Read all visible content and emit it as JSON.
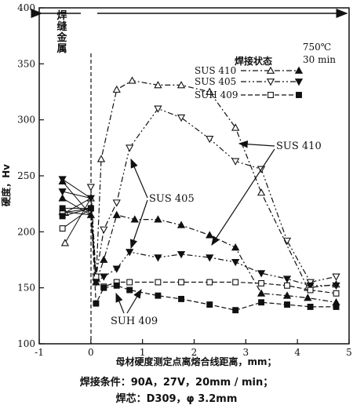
{
  "chart_data": {
    "type": "line",
    "xlabel": "母材硬度测定点离熔合线距离，mm；",
    "ylabel": "硬度，Hv",
    "xlim": [
      -1,
      5
    ],
    "ylim": [
      100,
      400
    ],
    "x_ticks": [
      "-1",
      "0",
      "1",
      "2",
      "3",
      "4",
      "5"
    ],
    "y_ticks": [
      "100",
      "150",
      "200",
      "250",
      "300",
      "350",
      "400"
    ],
    "weld_metal_label": "焊缝金属",
    "legend": {
      "header_cond": "焊接状态",
      "header_temp": "750℃",
      "header_time": "30 min",
      "rows": [
        "SUS 410",
        "SUS 405",
        "SUH 409"
      ]
    },
    "annotations": [
      "SUS 410",
      "SUS 405",
      "SUH 409"
    ],
    "series": [
      {
        "name": "SUS 410",
        "condition": "焊接状态",
        "marker": "triangle-up-open",
        "dash": "dashdot",
        "x": [
          -0.5,
          -0.5,
          0,
          0.1,
          0.2,
          0.5,
          0.8,
          1.3,
          1.75,
          2.3,
          2.8,
          3.3,
          4.2,
          4.75
        ],
        "y": [
          190,
          217,
          230,
          155,
          265,
          327,
          335,
          331,
          331,
          325,
          293,
          235,
          150,
          153
        ]
      },
      {
        "name": "SUS 410",
        "condition": "750℃ 30 min",
        "marker": "triangle-up-filled",
        "dash": "dashdot",
        "x": [
          -0.55,
          -0.55,
          -0.55,
          0,
          0.1,
          0.25,
          0.5,
          0.85,
          1.3,
          1.75,
          2.3,
          2.8,
          3.3,
          3.8,
          4.2,
          4.75
        ],
        "y": [
          245,
          230,
          218,
          215,
          155,
          175,
          215,
          211,
          211,
          206,
          197,
          186,
          145,
          143,
          141,
          137
        ]
      },
      {
        "name": "SUS 405",
        "condition": "焊接状态",
        "marker": "triangle-down-open",
        "dash": "dashdotdot",
        "x": [
          0,
          0.1,
          0.25,
          0.5,
          0.75,
          1.3,
          1.75,
          2.3,
          2.8,
          3.3,
          3.8,
          4.25,
          4.75
        ],
        "y": [
          240,
          160,
          202,
          226,
          275,
          310,
          302,
          283,
          263,
          256,
          192,
          155,
          160
        ]
      },
      {
        "name": "SUS 405",
        "condition": "750℃ 30 min",
        "marker": "triangle-down-filled",
        "dash": "dashdotdot",
        "x": [
          -0.55,
          -0.55,
          0,
          0.1,
          0.25,
          0.5,
          0.75,
          1.3,
          1.75,
          2.3,
          2.8,
          3.3,
          3.8,
          4.25,
          4.75
        ],
        "y": [
          247,
          236,
          230,
          155,
          160,
          167,
          182,
          177,
          180,
          177,
          173,
          163,
          158,
          152,
          152
        ]
      },
      {
        "name": "SUH 409",
        "condition": "焊接状态",
        "marker": "square-open",
        "dash": "dashed",
        "x": [
          -0.55,
          -0.55,
          0,
          0.1,
          0.25,
          0.5,
          0.75,
          1.3,
          1.75,
          2.3,
          2.8,
          3.3,
          3.8,
          4.25,
          4.75
        ],
        "y": [
          203,
          217,
          221,
          160,
          151,
          155,
          155,
          155,
          155,
          155,
          155,
          154,
          152,
          148,
          145
        ]
      },
      {
        "name": "SUH 409",
        "condition": "750℃ 30 min",
        "marker": "square-filled",
        "dash": "dashed",
        "x": [
          -0.55,
          -0.55,
          0,
          0.1,
          0.25,
          0.5,
          0.75,
          1.3,
          1.75,
          2.3,
          2.8,
          3.3,
          3.8,
          4.25,
          4.75
        ],
        "y": [
          221,
          214,
          221,
          136,
          150,
          152,
          148,
          143,
          140,
          135,
          130,
          137,
          135,
          133,
          133
        ]
      }
    ]
  },
  "captions": {
    "line1": "焊接条件：90A，27V，20mm / min；",
    "line2": "焊芯：D309，φ 3.2mm"
  }
}
